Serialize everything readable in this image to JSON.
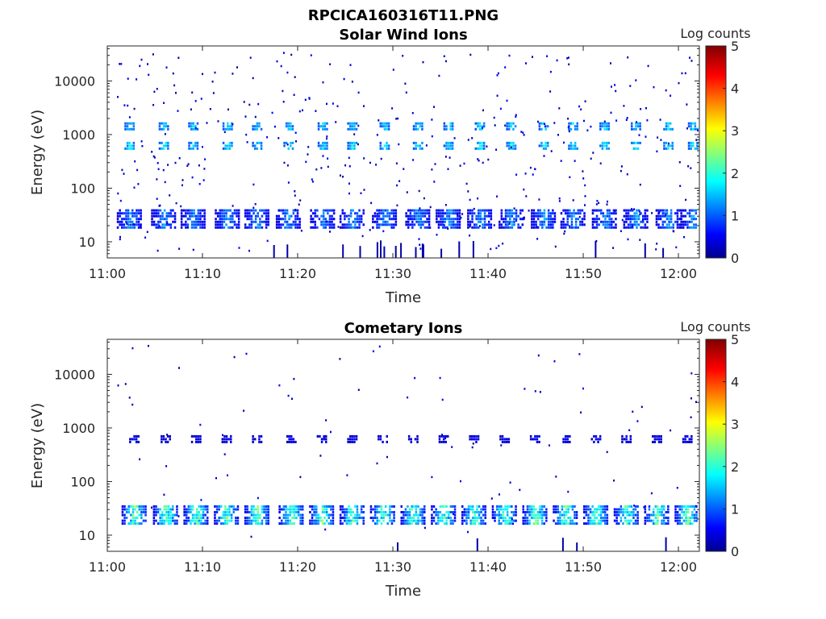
{
  "figure_title": "RPCICA160316T11.PNG",
  "colorbar_label": "Log counts",
  "colorbar_ticks": [
    "0",
    "1",
    "2",
    "3",
    "4",
    "5"
  ],
  "chart_data": [
    {
      "type": "heatmap",
      "title": "Solar Wind Ions",
      "xlabel": "Time",
      "ylabel": "Energy (eV)",
      "x_ticks": [
        "11:00",
        "11:10",
        "11:20",
        "11:30",
        "11:40",
        "11:50",
        "12:00"
      ],
      "y_ticks": [
        "10",
        "100",
        "1000",
        "10000"
      ],
      "y_scale": "log",
      "ylim": [
        5,
        45000
      ],
      "xlim": [
        "11:00",
        "12:02"
      ],
      "clim": [
        0,
        5
      ],
      "colormap": "jet",
      "colorbar_label": "Log counts",
      "sweep_bands": [
        {
          "energy_eV": 28,
          "level_range": [
            0.3,
            1.6
          ]
        },
        {
          "energy_eV": 650,
          "level_range": [
            0.8,
            2.2
          ]
        },
        {
          "energy_eV": 1500,
          "level_range": [
            0.8,
            2.0
          ]
        }
      ],
      "sweep_centers_min": [
        2.3,
        5.9,
        9.0,
        12.6,
        15.7,
        19.0,
        22.6,
        25.7,
        29.1,
        32.6,
        35.8,
        39.1,
        42.4,
        45.8,
        48.9,
        52.2,
        55.5,
        58.9,
        61.5
      ]
    },
    {
      "type": "heatmap",
      "title": "Cometary Ions",
      "xlabel": "Time",
      "ylabel": "Energy (eV)",
      "x_ticks": [
        "11:00",
        "11:10",
        "11:20",
        "11:30",
        "11:40",
        "11:50",
        "12:00"
      ],
      "y_ticks": [
        "10",
        "100",
        "1000",
        "10000"
      ],
      "y_scale": "log",
      "ylim": [
        5,
        45000
      ],
      "xlim": [
        "11:00",
        "12:02"
      ],
      "clim": [
        0,
        5
      ],
      "colormap": "jet",
      "colorbar_label": "Log counts",
      "sweep_bands": [
        {
          "energy_eV": 25,
          "level_range": [
            0.3,
            2.8
          ]
        },
        {
          "energy_eV": 650,
          "level_range": [
            0.2,
            0.7
          ]
        }
      ],
      "sweep_centers_min": [
        2.8,
        6.1,
        9.3,
        12.5,
        15.7,
        19.3,
        22.5,
        25.7,
        28.9,
        32.1,
        35.3,
        38.5,
        41.7,
        44.9,
        48.1,
        51.3,
        54.5,
        57.7,
        60.9
      ]
    }
  ]
}
